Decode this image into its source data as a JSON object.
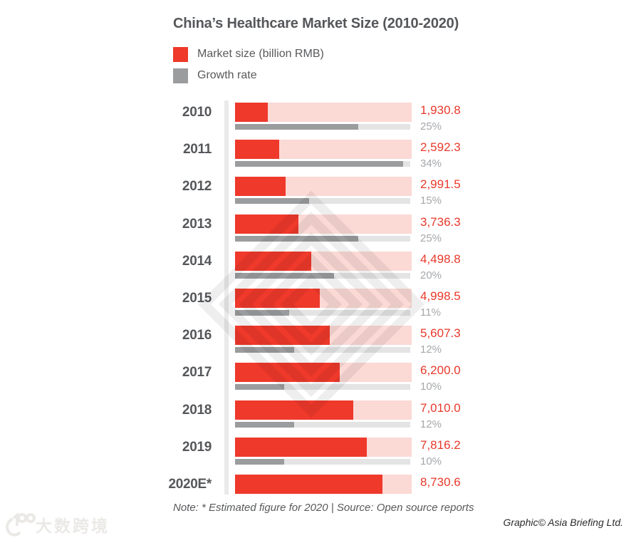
{
  "title": "China’s Healthcare Market Size (2010-2020)",
  "chart_data": {
    "type": "bar",
    "orientation": "horizontal",
    "title": "China’s Healthcare Market Size (2010-2020)",
    "categories": [
      "2010",
      "2011",
      "2012",
      "2013",
      "2014",
      "2015",
      "2016",
      "2017",
      "2018",
      "2019",
      "2020E*"
    ],
    "series": [
      {
        "name": "Market size (billion RMB)",
        "color": "#ee392b",
        "track_color": "#fbd9d5",
        "values": [
          1930.8,
          2592.3,
          2991.5,
          3736.3,
          4498.8,
          4998.5,
          5607.3,
          6200.0,
          7010.0,
          7816.2,
          8730.6
        ],
        "labels": [
          "1,930.8",
          "2,592.3",
          "2,991.5",
          "3,736.3",
          "4,498.8",
          "4,998.5",
          "5,607.3",
          "6,200.0",
          "7,010.0",
          "7,816.2",
          "8,730.6"
        ]
      },
      {
        "name": "Growth rate",
        "color": "#9b9c9e",
        "track_color": "#e4e4e4",
        "values": [
          25,
          34,
          15,
          25,
          20,
          11,
          12,
          10,
          12,
          10,
          null
        ],
        "labels": [
          "25%",
          "34%",
          "15%",
          "25%",
          "20%",
          "11%",
          "12%",
          "10%",
          "12%",
          "10%",
          null
        ]
      }
    ],
    "value_axis_max": 10450,
    "growth_axis_max": 35.5,
    "grid": false,
    "legend_position": "top-left",
    "value_label_color": "#e8392b",
    "growth_label_color": "#a5a7aa"
  },
  "footer": {
    "note": "Note: * Estimated figure for 2020  | Source: Open source reports",
    "credit": "Graphic© Asia Briefing Ltd."
  },
  "watermark": {
    "brand_text": "大数跨境"
  }
}
